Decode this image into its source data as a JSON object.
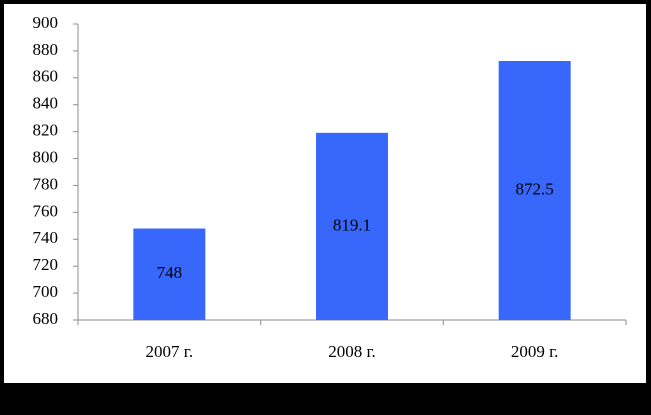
{
  "chart_data": {
    "type": "bar",
    "categories": [
      "2007 г.",
      "2008 г.",
      "2009 г."
    ],
    "values": [
      748,
      819.1,
      872.5
    ],
    "color": "#3867fb",
    "ylim": [
      680,
      900
    ],
    "yticks": [
      680,
      700,
      720,
      740,
      760,
      780,
      800,
      820,
      840,
      860,
      880,
      900
    ],
    "grid": false,
    "data_labels": true
  }
}
